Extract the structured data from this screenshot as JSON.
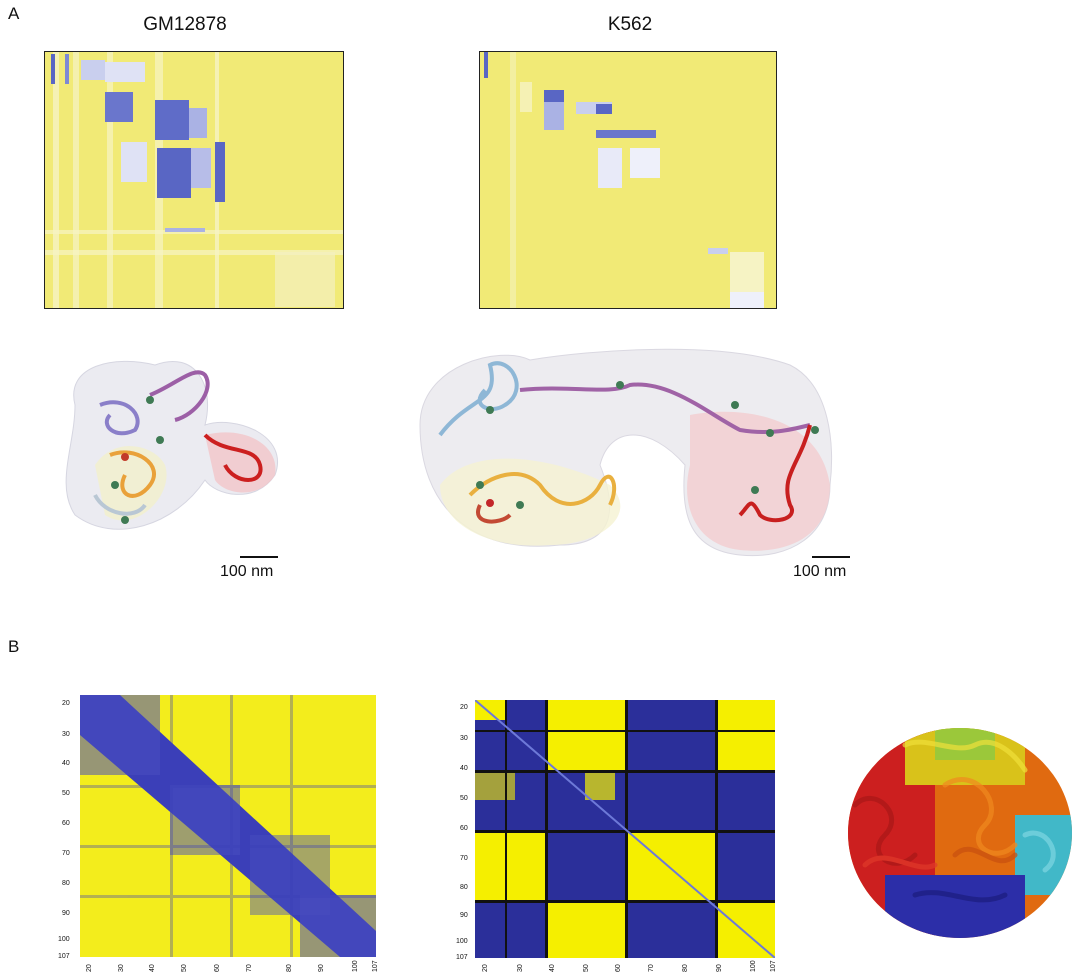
{
  "panels": {
    "a_label": "A",
    "b_label": "B"
  },
  "panel_a": {
    "left_title": "GM12878",
    "right_title": "K562",
    "left_scale": "100 nm",
    "right_scale": "100 nm"
  },
  "panel_b": {
    "left_y_ticks": [
      "20",
      "30",
      "40",
      "50",
      "60",
      "70",
      "80",
      "90",
      "100",
      "107"
    ],
    "left_x_ticks": [
      "20",
      "30",
      "40",
      "50",
      "60",
      "70",
      "80",
      "90",
      "100",
      "107"
    ],
    "mid_y_ticks": [
      "20",
      "30",
      "40",
      "50",
      "60",
      "70",
      "80",
      "90",
      "100",
      "107"
    ],
    "mid_x_ticks": [
      "20",
      "30",
      "40",
      "50",
      "60",
      "70",
      "80",
      "90",
      "100",
      "107"
    ]
  },
  "colors": {
    "heat_yellow": "#f2ea6e",
    "heat_blue": "#5f6fc8",
    "hic_yellow": "#f5ef00",
    "hic_blue": "#3b3fb8",
    "dark_blue": "#2b2f9a"
  }
}
